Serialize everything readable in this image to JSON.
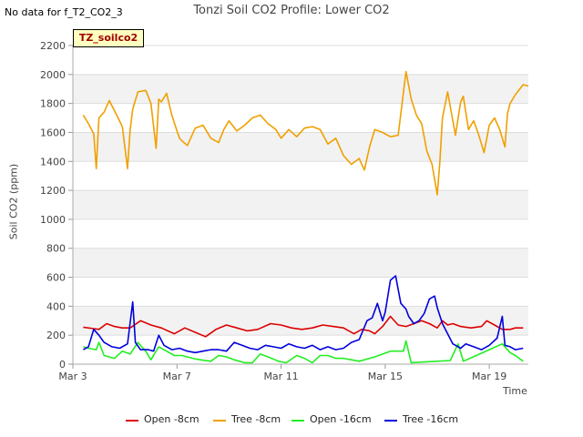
{
  "header": {
    "nodata_text": "No data for f_T2_CO2_3",
    "title": "Tonzi Soil CO2 Profile: Lower CO2",
    "tag": "TZ_soilco2"
  },
  "chart_data": {
    "type": "line",
    "title": "Tonzi Soil CO2 Profile: Lower CO2",
    "xlabel": "Time",
    "ylabel": "Soil CO2 (ppm)",
    "xlim": [
      3,
      20.5
    ],
    "ylim": [
      0,
      2200
    ],
    "xticks": [
      3,
      7,
      11,
      15,
      19
    ],
    "xtick_labels": [
      "Mar 3",
      "Mar 7",
      "Mar 11",
      "Mar 15",
      "Mar 19"
    ],
    "yticks": [
      0,
      200,
      400,
      600,
      800,
      1000,
      1200,
      1400,
      1600,
      1800,
      2000,
      2200
    ],
    "grid": true,
    "legend_position": "bottom",
    "series": [
      {
        "name": "Open -8cm",
        "color": "#dd0000",
        "x": [
          3.4,
          3.8,
          4.0,
          4.3,
          4.6,
          4.9,
          5.2,
          5.6,
          6.0,
          6.4,
          6.9,
          7.3,
          7.7,
          8.1,
          8.5,
          8.9,
          9.3,
          9.7,
          10.1,
          10.6,
          11.0,
          11.4,
          11.8,
          12.2,
          12.6,
          13.0,
          13.4,
          13.8,
          14.1,
          14.4,
          14.6,
          14.9,
          15.2,
          15.5,
          15.8,
          16.1,
          16.4,
          16.7,
          17.0,
          17.2,
          17.4,
          17.6,
          17.9,
          18.3,
          18.7,
          18.9,
          19.2,
          19.5,
          19.8,
          20.0,
          20.3
        ],
        "y": [
          255,
          245,
          240,
          280,
          260,
          250,
          250,
          300,
          270,
          250,
          210,
          250,
          220,
          190,
          240,
          270,
          250,
          230,
          240,
          280,
          270,
          250,
          240,
          250,
          270,
          260,
          250,
          210,
          240,
          230,
          210,
          260,
          330,
          270,
          260,
          280,
          300,
          280,
          250,
          300,
          270,
          280,
          260,
          250,
          260,
          300,
          270,
          240,
          240,
          250,
          250
        ]
      },
      {
        "name": "Tree -8cm",
        "color": "#f0a000",
        "x": [
          3.4,
          3.6,
          3.8,
          3.9,
          4.0,
          4.2,
          4.4,
          4.6,
          4.9,
          5.1,
          5.2,
          5.3,
          5.5,
          5.8,
          6.0,
          6.2,
          6.3,
          6.4,
          6.6,
          6.8,
          7.0,
          7.1,
          7.2,
          7.4,
          7.7,
          8.0,
          8.3,
          8.6,
          8.8,
          9.0,
          9.3,
          9.6,
          9.9,
          10.2,
          10.5,
          10.8,
          11.0,
          11.3,
          11.6,
          11.9,
          12.2,
          12.5,
          12.8,
          13.1,
          13.4,
          13.7,
          14.0,
          14.2,
          14.4,
          14.6,
          14.9,
          15.2,
          15.5,
          15.8,
          16.0,
          16.2,
          16.4,
          16.6,
          16.8,
          17.0,
          17.1,
          17.2,
          17.4,
          17.7,
          17.9,
          18.0,
          18.2,
          18.4,
          18.6,
          18.8,
          19.0,
          19.2,
          19.4,
          19.6,
          19.7,
          19.8,
          20.0,
          20.3,
          20.5
        ],
        "y": [
          1720,
          1660,
          1590,
          1350,
          1700,
          1740,
          1820,
          1750,
          1640,
          1350,
          1620,
          1760,
          1880,
          1890,
          1800,
          1490,
          1830,
          1810,
          1870,
          1720,
          1610,
          1560,
          1540,
          1510,
          1630,
          1650,
          1560,
          1530,
          1620,
          1680,
          1610,
          1650,
          1700,
          1720,
          1660,
          1620,
          1560,
          1620,
          1570,
          1630,
          1640,
          1620,
          1520,
          1560,
          1440,
          1380,
          1420,
          1340,
          1500,
          1620,
          1600,
          1570,
          1580,
          2020,
          1830,
          1720,
          1660,
          1470,
          1380,
          1170,
          1400,
          1700,
          1880,
          1580,
          1810,
          1850,
          1620,
          1680,
          1580,
          1460,
          1650,
          1700,
          1620,
          1500,
          1730,
          1800,
          1860,
          1930,
          1920
        ]
      },
      {
        "name": "Open -16cm",
        "color": "#22ee22",
        "x": [
          3.4,
          3.6,
          3.9,
          4.0,
          4.2,
          4.6,
          4.9,
          5.2,
          5.5,
          5.8,
          6.0,
          6.3,
          6.6,
          6.9,
          7.2,
          7.6,
          7.9,
          8.3,
          8.6,
          8.9,
          9.2,
          9.6,
          9.9,
          10.2,
          10.5,
          10.9,
          11.2,
          11.6,
          11.9,
          12.2,
          12.5,
          12.8,
          13.1,
          13.4,
          14.0,
          14.6,
          15.2,
          15.7,
          15.8,
          16.0,
          16.5,
          17.0,
          17.5,
          17.8,
          18.0,
          18.5,
          19.0,
          19.5,
          19.8,
          20.0,
          20.3
        ],
        "y": [
          120,
          110,
          100,
          150,
          60,
          40,
          90,
          70,
          150,
          90,
          30,
          120,
          90,
          60,
          60,
          40,
          30,
          20,
          60,
          50,
          30,
          10,
          10,
          70,
          50,
          20,
          10,
          60,
          40,
          10,
          60,
          60,
          40,
          40,
          20,
          50,
          90,
          90,
          160,
          10,
          15,
          20,
          25,
          140,
          20,
          60,
          100,
          140,
          80,
          60,
          20
        ]
      },
      {
        "name": "Tree -16cm",
        "color": "#0000dd",
        "x": [
          3.4,
          3.6,
          3.8,
          4.0,
          4.2,
          4.5,
          4.8,
          5.1,
          5.3,
          5.4,
          5.6,
          5.9,
          6.1,
          6.3,
          6.5,
          6.8,
          7.1,
          7.4,
          7.7,
          8.0,
          8.3,
          8.6,
          8.9,
          9.2,
          9.5,
          9.8,
          10.1,
          10.4,
          10.7,
          11.0,
          11.3,
          11.6,
          11.9,
          12.2,
          12.5,
          12.8,
          13.1,
          13.4,
          13.7,
          14.0,
          14.3,
          14.5,
          14.7,
          14.9,
          15.0,
          15.2,
          15.4,
          15.6,
          15.8,
          15.9,
          16.1,
          16.3,
          16.5,
          16.7,
          16.9,
          17.0,
          17.2,
          17.4,
          17.6,
          17.9,
          18.1,
          18.4,
          18.7,
          19.0,
          19.3,
          19.5,
          19.6,
          19.8,
          20.0,
          20.3
        ],
        "y": [
          100,
          120,
          240,
          200,
          150,
          120,
          110,
          140,
          430,
          150,
          100,
          100,
          90,
          200,
          130,
          100,
          110,
          90,
          80,
          90,
          100,
          100,
          90,
          150,
          130,
          110,
          100,
          130,
          120,
          110,
          140,
          120,
          110,
          130,
          100,
          120,
          100,
          110,
          150,
          170,
          300,
          320,
          420,
          300,
          360,
          580,
          610,
          420,
          380,
          330,
          280,
          300,
          350,
          450,
          470,
          390,
          280,
          210,
          140,
          110,
          140,
          120,
          100,
          130,
          180,
          330,
          130,
          120,
          100,
          110
        ]
      }
    ]
  },
  "legend": {
    "items": [
      {
        "label": "Open -8cm",
        "color": "#dd0000"
      },
      {
        "label": "Tree -8cm",
        "color": "#f0a000"
      },
      {
        "label": "Open -16cm",
        "color": "#22ee22"
      },
      {
        "label": "Tree -16cm",
        "color": "#0000dd"
      }
    ]
  }
}
